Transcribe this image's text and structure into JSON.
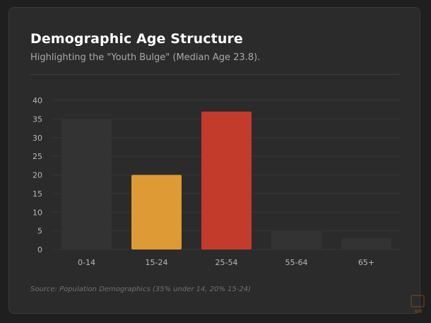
{
  "header": {
    "title": "Demographic Age Structure",
    "subtitle": "Highlighting the \"Youth Bulge\" (Median Age 23.8)."
  },
  "footer": {
    "source": "Source: Population Demographics (35% under 14, 20% 15-24)"
  },
  "colors": {
    "card_background": "#2b2b2b",
    "muted_bar": "#333333",
    "youth_bar": "#de9a35",
    "working_bar": "#c23b2b",
    "grid": "#363636",
    "axis_text": "#b8b8b8"
  },
  "chart_data": {
    "type": "bar",
    "categories": [
      "0-14",
      "15-24",
      "25-54",
      "55-64",
      "65+"
    ],
    "values": [
      35,
      20,
      37,
      5,
      3
    ],
    "bar_colors": [
      "#333333",
      "#de9a35",
      "#c23b2b",
      "#333333",
      "#333333"
    ],
    "yticks": [
      0,
      5,
      10,
      15,
      20,
      25,
      30,
      35,
      40
    ],
    "ylim": [
      0,
      40
    ],
    "grid": true,
    "legend": "none"
  }
}
